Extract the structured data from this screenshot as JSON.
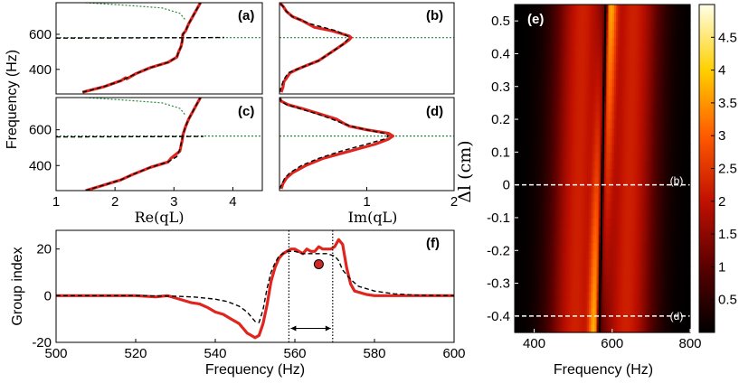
{
  "chart_data": [
    {
      "id": "a",
      "type": "line",
      "panel_label": "(a)",
      "ylabel": "Frequency (Hz)",
      "xlim": [
        1,
        4.5
      ],
      "ylim": [
        260,
        780
      ],
      "yticks": [
        "400",
        "600"
      ],
      "ytick_values": [
        400,
        600
      ],
      "series": [
        {
          "name": "measured",
          "color": "#e0241e",
          "x": [
            1.45,
            1.8,
            2.1,
            2.18,
            2.2,
            2.35,
            2.6,
            2.9,
            3.05,
            3.08,
            3.12,
            3.14,
            3.15,
            3.2,
            3.25,
            3.35,
            3.45
          ],
          "y": [
            270,
            300,
            335,
            352,
            346,
            375,
            410,
            440,
            470,
            500,
            530,
            560,
            600,
            620,
            660,
            720,
            780
          ]
        },
        {
          "name": "theory",
          "color": "#000000",
          "x": [
            1.45,
            1.8,
            2.1,
            2.35,
            2.6,
            2.9,
            3.05,
            3.08,
            3.12,
            3.14,
            3.15,
            3.2,
            3.25,
            3.35,
            3.45
          ],
          "y": [
            270,
            300,
            335,
            375,
            410,
            440,
            470,
            500,
            530,
            560,
            600,
            620,
            660,
            720,
            780
          ]
        },
        {
          "name": "theory-b",
          "color": "#000000",
          "x": [
            1.0,
            2.0,
            3.0,
            3.5,
            3.85
          ],
          "y": [
            578,
            579,
            580,
            581,
            582
          ]
        },
        {
          "name": "green",
          "color": "#2a8a3a",
          "x": [
            1.0,
            2.0,
            3.0,
            4.5
          ],
          "y": [
            581,
            581,
            581,
            581
          ]
        },
        {
          "name": "green-upper",
          "color": "#2a8a3a",
          "x": [
            1.5,
            2.2,
            2.8,
            3.1,
            3.2
          ],
          "y": [
            780,
            765,
            750,
            720,
            680
          ]
        }
      ]
    },
    {
      "id": "b",
      "type": "line",
      "panel_label": "(b)",
      "xlim": [
        0,
        2
      ],
      "ylim": [
        260,
        780
      ],
      "series": [
        {
          "name": "measured",
          "color": "#e0241e",
          "x": [
            0.02,
            0.04,
            0.05,
            0.08,
            0.12,
            0.2,
            0.3,
            0.45,
            0.6,
            0.72,
            0.8,
            0.82,
            0.8,
            0.6,
            0.4,
            0.25,
            0.15,
            0.08,
            0.04,
            0.0
          ],
          "y": [
            270,
            300,
            330,
            350,
            380,
            400,
            420,
            450,
            500,
            540,
            570,
            581,
            590,
            620,
            640,
            680,
            700,
            730,
            760,
            780
          ]
        },
        {
          "name": "theory",
          "color": "#000000",
          "x": [
            0.0,
            0.02,
            0.04,
            0.06,
            0.1,
            0.2,
            0.3,
            0.45,
            0.6,
            0.72,
            0.78,
            0.8,
            0.78,
            0.65,
            0.5,
            0.35,
            0.25,
            0.15,
            0.08,
            0.04,
            0.0
          ],
          "y": [
            270,
            300,
            330,
            350,
            380,
            400,
            420,
            450,
            500,
            540,
            570,
            581,
            590,
            620,
            640,
            660,
            680,
            700,
            730,
            760,
            780
          ]
        },
        {
          "name": "green",
          "color": "#2a8a3a",
          "x": [
            0.0,
            0.5,
            1.0,
            1.5,
            2.0
          ],
          "y": [
            581,
            581,
            581,
            581,
            581
          ]
        }
      ]
    },
    {
      "id": "c",
      "type": "line",
      "panel_label": "(c)",
      "xlabel": "Re(qL)",
      "xlim": [
        1,
        4.5
      ],
      "ylim": [
        260,
        780
      ],
      "xticks": [
        "1",
        "2",
        "3",
        "4"
      ],
      "xtick_values": [
        1,
        2,
        3,
        4
      ],
      "yticks": [
        "400",
        "600"
      ],
      "ytick_values": [
        400,
        600
      ],
      "series": [
        {
          "name": "measured",
          "color": "#e0241e",
          "x": [
            1.5,
            1.8,
            2.1,
            2.3,
            2.6,
            2.9,
            2.95,
            3.1,
            3.12,
            3.14,
            3.15,
            3.2,
            3.25,
            3.35,
            3.45
          ],
          "y": [
            260,
            290,
            320,
            350,
            390,
            420,
            440,
            480,
            510,
            540,
            570,
            620,
            660,
            720,
            780
          ]
        },
        {
          "name": "theory",
          "color": "#000000",
          "x": [
            1.5,
            1.8,
            2.1,
            2.3,
            2.6,
            2.9,
            3.05,
            3.1,
            3.12,
            3.14,
            3.15,
            3.2,
            3.25,
            3.35,
            3.45
          ],
          "y": [
            260,
            290,
            320,
            350,
            390,
            420,
            450,
            490,
            520,
            548,
            570,
            620,
            660,
            720,
            780
          ]
        },
        {
          "name": "theory-b",
          "color": "#000000",
          "x": [
            1.0,
            2.0,
            3.0,
            3.5
          ],
          "y": [
            560,
            561,
            562,
            563
          ]
        },
        {
          "name": "green",
          "color": "#2a8a3a",
          "x": [
            1.0,
            2.0,
            3.0,
            4.5
          ],
          "y": [
            565,
            565,
            565,
            565
          ]
        },
        {
          "name": "green-upper",
          "color": "#2a8a3a",
          "x": [
            1.5,
            2.2,
            2.8,
            3.1,
            3.2
          ],
          "y": [
            780,
            765,
            750,
            720,
            680
          ]
        }
      ]
    },
    {
      "id": "d",
      "type": "line",
      "panel_label": "(d)",
      "xlabel": "Im(qL)",
      "xlim": [
        0,
        2
      ],
      "ylim": [
        260,
        780
      ],
      "xticks": [
        "1",
        "2"
      ],
      "xtick_values": [
        1,
        2
      ],
      "series": [
        {
          "name": "measured",
          "color": "#e0241e",
          "x": [
            0.02,
            0.04,
            0.08,
            0.15,
            0.3,
            0.5,
            0.8,
            1.1,
            1.25,
            1.3,
            1.25,
            1.0,
            0.8,
            0.72,
            0.65,
            0.45,
            0.25,
            0.1,
            0.02,
            0.0
          ],
          "y": [
            270,
            300,
            330,
            360,
            400,
            440,
            480,
            520,
            548,
            565,
            580,
            600,
            620,
            640,
            660,
            690,
            720,
            740,
            760,
            780
          ]
        },
        {
          "name": "theory",
          "color": "#000000",
          "x": [
            0.0,
            0.03,
            0.06,
            0.12,
            0.25,
            0.45,
            0.7,
            1.0,
            1.2,
            1.25,
            1.2,
            1.0,
            0.82,
            0.7,
            0.6,
            0.42,
            0.22,
            0.08,
            0.02,
            0.0
          ],
          "y": [
            270,
            300,
            330,
            360,
            400,
            440,
            480,
            520,
            548,
            565,
            580,
            600,
            620,
            640,
            660,
            690,
            720,
            740,
            760,
            780
          ]
        },
        {
          "name": "green",
          "color": "#2a8a3a",
          "x": [
            0.0,
            0.5,
            1.0,
            1.5,
            2.0
          ],
          "y": [
            565,
            565,
            565,
            565,
            565
          ]
        }
      ]
    },
    {
      "id": "f",
      "type": "line",
      "panel_label": "(f)",
      "xlabel": "Frequency (Hz)",
      "ylabel": "Group index",
      "xlim": [
        500,
        600
      ],
      "ylim": [
        -20,
        28
      ],
      "xticks": [
        "500",
        "520",
        "540",
        "560",
        "580",
        "600"
      ],
      "xtick_values": [
        500,
        520,
        540,
        560,
        580,
        600
      ],
      "yticks": [
        "-20",
        "0",
        "20"
      ],
      "ytick_values": [
        -20,
        0,
        20
      ],
      "series": [
        {
          "name": "measured",
          "color": "#e0241e",
          "x": [
            500,
            505,
            510,
            515,
            520,
            525,
            528,
            530,
            532,
            534,
            536,
            538,
            540,
            542,
            544,
            546,
            547,
            548,
            549,
            550,
            551,
            552,
            553,
            554,
            555,
            556,
            557,
            558,
            559,
            560,
            561,
            562,
            563,
            564,
            565,
            566,
            567,
            568,
            569,
            570,
            571,
            572,
            573,
            574,
            575,
            578,
            580,
            585,
            590,
            595,
            600
          ],
          "y": [
            0,
            0,
            0,
            0,
            0,
            -0.5,
            0,
            -1,
            -2,
            -3,
            -3.5,
            -5,
            -7,
            -8,
            -10,
            -12,
            -14,
            -16,
            -17,
            -18,
            -17,
            -12,
            -4,
            6,
            12,
            16,
            18,
            19,
            20,
            20,
            19,
            18,
            20,
            19,
            19,
            21,
            20,
            20,
            20,
            21,
            24,
            22,
            12,
            5,
            2,
            0.5,
            0,
            0,
            0,
            0,
            0
          ]
        },
        {
          "name": "theory",
          "color": "#000000",
          "x": [
            500,
            520,
            530,
            535,
            540,
            543,
            546,
            548,
            550,
            551,
            552,
            553,
            554,
            555,
            556,
            558,
            560,
            562,
            564,
            566,
            568,
            570,
            571,
            572,
            574,
            576,
            580,
            585,
            590,
            600
          ],
          "y": [
            0,
            0,
            -0.2,
            -0.6,
            -1.5,
            -2.5,
            -4.5,
            -7,
            -11,
            -11.5,
            -6,
            3,
            10,
            14,
            17,
            19,
            19,
            18,
            18,
            18,
            18,
            17,
            15,
            11,
            7,
            4,
            2,
            0.8,
            0.3,
            0
          ]
        }
      ],
      "vlines": [
        558.5,
        569.5
      ],
      "arrow": {
        "from": 558.5,
        "to": 569.5,
        "y": -14
      },
      "marker": {
        "x": 566,
        "y": 13.5,
        "color": "#cc2a2a"
      }
    },
    {
      "id": "e",
      "type": "heatmap",
      "panel_label": "(e)",
      "xlabel": "Frequency (Hz)",
      "ylabel": "Δl (cm)",
      "xlim": [
        350,
        800
      ],
      "ylim": [
        -0.45,
        0.55
      ],
      "xticks": [
        "400",
        "600",
        "800"
      ],
      "xtick_values": [
        400,
        600,
        800
      ],
      "yticks": [
        "-0.4",
        "-0.3",
        "-0.2",
        "-0.1",
        "0",
        "0.1",
        "0.2",
        "0.3",
        "0.4",
        "0.5"
      ],
      "ytick_values": [
        -0.4,
        -0.3,
        -0.2,
        -0.1,
        0,
        0.1,
        0.2,
        0.3,
        0.4,
        0.5
      ],
      "colorbar": {
        "min": 0,
        "max": 5,
        "ticks": [
          "0.5",
          "1",
          "1.5",
          "2",
          "2.5",
          "3",
          "3.5",
          "4",
          "4.5"
        ],
        "tick_values": [
          0.5,
          1,
          1.5,
          2,
          2.5,
          3,
          3.5,
          4,
          4.5
        ]
      },
      "gap_frequency_at_top": 585,
      "gap_frequency_at_bottom": 565,
      "dashed_lines": [
        {
          "dl": 0.0,
          "label": "(b)"
        },
        {
          "dl": -0.4,
          "label": "(d)"
        }
      ]
    }
  ]
}
